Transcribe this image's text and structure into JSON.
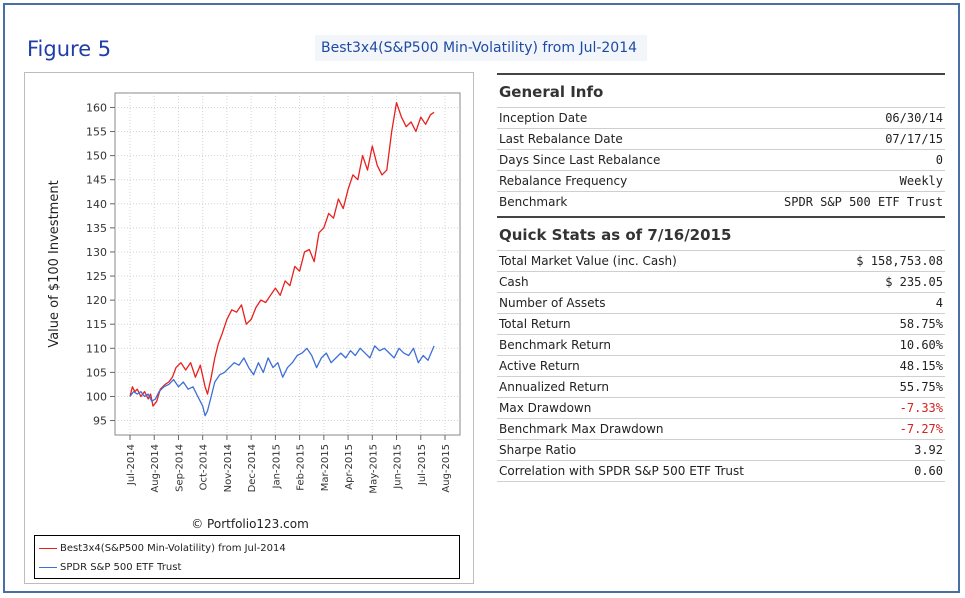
{
  "figure_label": "Figure 5",
  "figure_title": "Best3x4(S&P500 Min-Volatility) from Jul-2014",
  "copyright": "© Portfolio123.com",
  "general_info": {
    "title": "General Info",
    "rows": [
      {
        "label": "Inception Date",
        "value": "06/30/14"
      },
      {
        "label": "Last Rebalance Date",
        "value": "07/17/15"
      },
      {
        "label": "Days Since Last Rebalance",
        "value": "0"
      },
      {
        "label": "Rebalance Frequency",
        "value": "Weekly"
      },
      {
        "label": "Benchmark",
        "value": "SPDR S&P 500 ETF Trust"
      }
    ]
  },
  "quick_stats": {
    "title": "Quick Stats as of 7/16/2015",
    "rows": [
      {
        "label": "Total Market Value (inc. Cash)",
        "value": "$ 158,753.08"
      },
      {
        "label": "Cash",
        "value": "$ 235.05"
      },
      {
        "label": "Number of Assets",
        "value": "4"
      },
      {
        "label": "Total Return",
        "value": "58.75%"
      },
      {
        "label": "Benchmark Return",
        "value": "10.60%"
      },
      {
        "label": "Active Return",
        "value": "48.15%"
      },
      {
        "label": "Annualized Return",
        "value": "55.75%"
      },
      {
        "label": "Max Drawdown",
        "value": "-7.33%",
        "negative": true
      },
      {
        "label": "Benchmark Max Drawdown",
        "value": "-7.27%",
        "negative": true
      },
      {
        "label": "Sharpe Ratio",
        "value": "3.92"
      },
      {
        "label": "Correlation with SPDR S&P 500 ETF Trust",
        "value": "0.60"
      }
    ]
  },
  "chart_data": {
    "type": "line",
    "ylabel": "Value of $100 Investment",
    "xlabel": "",
    "ylim": [
      92,
      163
    ],
    "yticks": [
      95,
      100,
      105,
      110,
      115,
      120,
      125,
      130,
      135,
      140,
      145,
      150,
      155,
      160
    ],
    "xticks": [
      "Jul-2014",
      "Aug-2014",
      "Sep-2014",
      "Oct-2014",
      "Nov-2014",
      "Dec-2014",
      "Jan-2015",
      "Feb-2015",
      "Mar-2015",
      "Apr-2015",
      "May-2015",
      "Jun-2015",
      "Jul-2015",
      "Aug-2015"
    ],
    "grid": true,
    "legend_position": "bottom",
    "series": [
      {
        "name": "Best3x4(S&P500 Min-Volatility) from Jul-2014",
        "color": "#e8201e",
        "x": [
          0,
          0.1,
          0.2,
          0.3,
          0.45,
          0.6,
          0.75,
          0.85,
          0.95,
          1.1,
          1.25,
          1.45,
          1.6,
          1.75,
          1.9,
          2.1,
          2.3,
          2.5,
          2.7,
          2.9,
          3.1,
          3.2,
          3.35,
          3.5,
          3.65,
          3.8,
          4.0,
          4.2,
          4.4,
          4.6,
          4.8,
          5.0,
          5.2,
          5.4,
          5.6,
          5.8,
          6.0,
          6.2,
          6.4,
          6.6,
          6.8,
          7.0,
          7.2,
          7.4,
          7.6,
          7.8,
          8.0,
          8.2,
          8.4,
          8.6,
          8.8,
          9.0,
          9.2,
          9.4,
          9.6,
          9.8,
          10.0,
          10.2,
          10.4,
          10.6,
          10.8,
          11.0,
          11.2,
          11.4,
          11.6,
          11.8,
          12.0,
          12.2,
          12.4,
          12.55
        ],
        "y": [
          100,
          102,
          101,
          101.5,
          100,
          101,
          99.5,
          100.5,
          98,
          99,
          101.5,
          102.5,
          103,
          104,
          106,
          107,
          105.5,
          107,
          104,
          106.5,
          102,
          100.5,
          104,
          108,
          111,
          113,
          116,
          118,
          117.5,
          119,
          115,
          116,
          118.5,
          120,
          119.5,
          121,
          122.5,
          121,
          124,
          123,
          127,
          126,
          130,
          130.5,
          128,
          134,
          135,
          138,
          137,
          141,
          139,
          143,
          146,
          145,
          150,
          147,
          152,
          148,
          146,
          147,
          155,
          161,
          158,
          156,
          157,
          155,
          158,
          156.5,
          158.5,
          159
        ]
      },
      {
        "name": "SPDR S&P 500 ETF Trust",
        "color": "#3d6fd9",
        "x": [
          0,
          0.15,
          0.3,
          0.45,
          0.6,
          0.75,
          0.9,
          1.05,
          1.2,
          1.4,
          1.6,
          1.8,
          2.0,
          2.2,
          2.4,
          2.6,
          2.8,
          3.0,
          3.1,
          3.2,
          3.35,
          3.5,
          3.7,
          3.9,
          4.1,
          4.3,
          4.5,
          4.7,
          4.9,
          5.1,
          5.3,
          5.5,
          5.7,
          5.9,
          6.1,
          6.3,
          6.5,
          6.7,
          6.9,
          7.1,
          7.3,
          7.5,
          7.7,
          7.9,
          8.1,
          8.3,
          8.5,
          8.7,
          8.9,
          9.1,
          9.3,
          9.5,
          9.7,
          9.9,
          10.1,
          10.3,
          10.5,
          10.7,
          10.9,
          11.1,
          11.3,
          11.5,
          11.7,
          11.9,
          12.1,
          12.3,
          12.55
        ],
        "y": [
          100,
          101,
          100.5,
          101,
          100,
          100.5,
          99,
          99.5,
          101,
          102,
          102.5,
          103.5,
          102,
          103,
          101.5,
          102,
          100,
          98,
          96,
          97,
          100,
          103,
          104.5,
          105,
          106,
          107,
          106.5,
          108,
          106,
          104.5,
          107,
          105,
          108,
          106,
          107,
          104,
          106,
          107,
          108.5,
          109,
          110,
          108.5,
          106,
          108,
          109,
          107,
          108,
          109,
          108,
          109.5,
          108.5,
          110,
          109,
          108,
          110.5,
          109.5,
          110,
          109,
          108,
          110,
          109,
          108.5,
          110,
          107,
          108.5,
          107.5,
          110.5
        ]
      }
    ]
  }
}
